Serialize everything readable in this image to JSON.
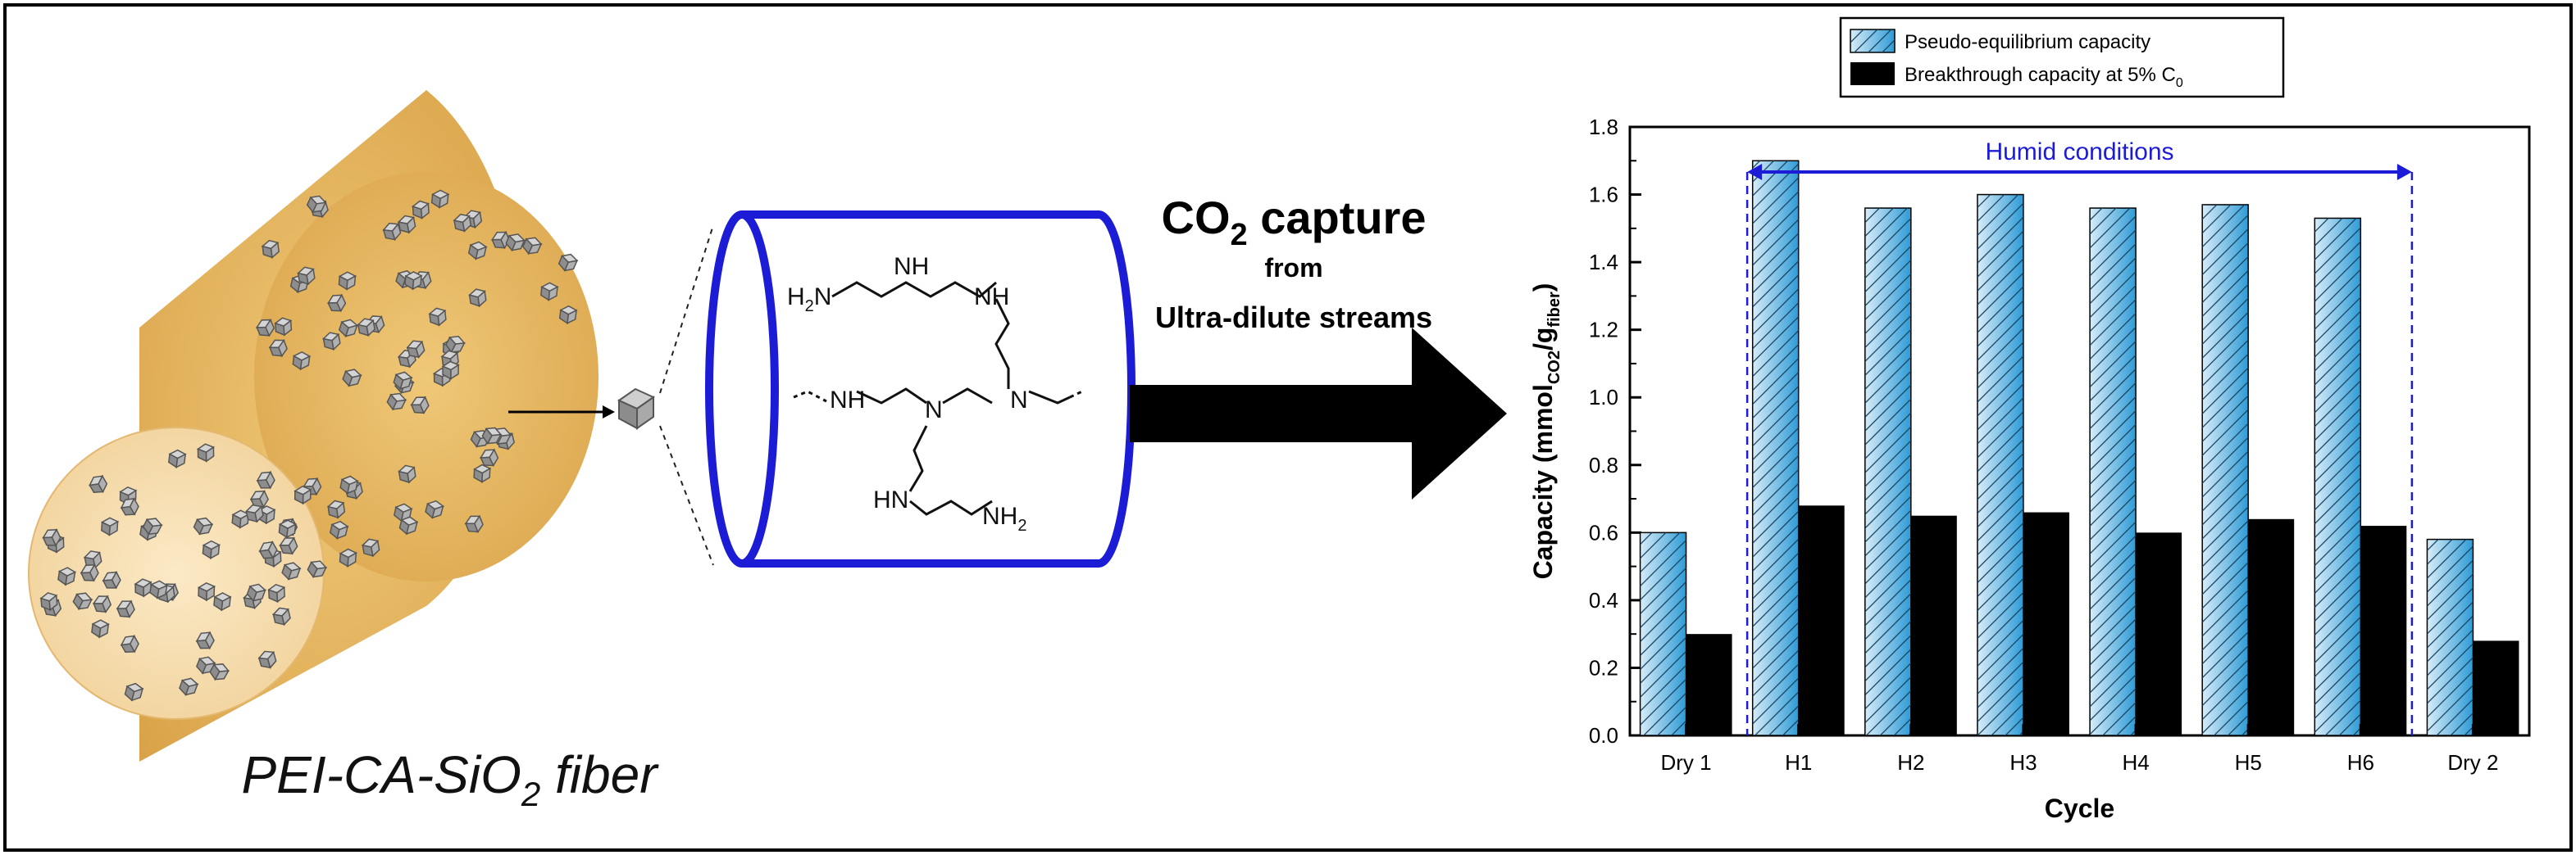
{
  "left": {
    "caption_main": "PEI-CA-SiO",
    "caption_sub": "2",
    "caption_tail": " fiber",
    "amine": {
      "nh2_top": "H",
      "nh2_top_sub": "2",
      "nh2_top_n": "N",
      "nh_a": "NH",
      "nh_b": "NH",
      "nh_c": "NH",
      "n_center": "N",
      "n_right": "N",
      "hn": "HN",
      "nh2_bottom": "NH",
      "nh2_bottom_sub": "2"
    }
  },
  "middle": {
    "title_main": "CO",
    "title_sub": "2",
    "title_tail": " capture",
    "line2": "from",
    "line3": "Ultra-dilute streams"
  },
  "chart_data": {
    "type": "bar",
    "categories": [
      "Dry 1",
      "H1",
      "H2",
      "H3",
      "H4",
      "H5",
      "H6",
      "Dry 2"
    ],
    "series": [
      {
        "name": "Pseudo-equilibrium capacity",
        "values": [
          0.6,
          1.7,
          1.56,
          1.6,
          1.56,
          1.57,
          1.53,
          0.58
        ],
        "color": "#2e9bd6",
        "pattern": "diagonal-hatch"
      },
      {
        "name": "Breakthrough capacity at 5% C0",
        "values": [
          0.3,
          0.68,
          0.65,
          0.66,
          0.6,
          0.64,
          0.62,
          0.28
        ],
        "color": "#000000"
      }
    ],
    "legend": {
      "entry1": "Pseudo-equilibrium capacity",
      "entry2_main": "Breakthrough capacity at 5% C",
      "entry2_sub": "0",
      "position": "top"
    },
    "ylim": [
      0,
      1.8
    ],
    "yticks": [
      "0.0",
      "0.2",
      "0.4",
      "0.6",
      "0.8",
      "1.0",
      "1.2",
      "1.4",
      "1.6",
      "1.8"
    ],
    "xlabel": "Cycle",
    "ylabel": {
      "main": "Capacity (mmol",
      "sub1": "CO2",
      "mid": "/g",
      "sub2": "fiber",
      "end": ")"
    },
    "annotation": {
      "text": "Humid conditions",
      "color": "#1c1cd6",
      "from_category": "H1",
      "to_category": "H6"
    }
  }
}
